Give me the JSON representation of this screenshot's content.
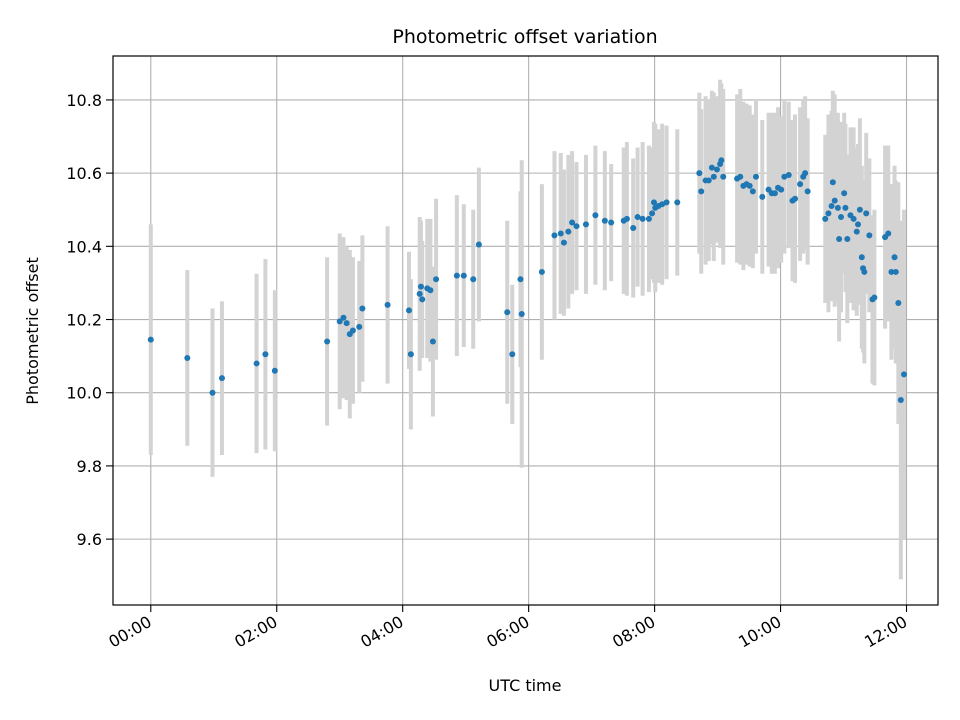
{
  "chart_data": {
    "type": "scatter",
    "title": "Photometric offset variation",
    "xlabel": "UTC time",
    "ylabel": "Photometric offset",
    "x_unit": "hours UTC",
    "xlim": [
      -0.6,
      12.5
    ],
    "ylim": [
      9.42,
      10.92
    ],
    "xticks": [
      0,
      2,
      4,
      6,
      8,
      10,
      12
    ],
    "xtick_labels": [
      "00:00",
      "02:00",
      "04:00",
      "06:00",
      "08:00",
      "10:00",
      "12:00"
    ],
    "yticks": [
      9.6,
      9.8,
      10.0,
      10.2,
      10.4,
      10.6,
      10.8
    ],
    "ytick_labels": [
      "9.6",
      "9.8",
      "10.0",
      "10.2",
      "10.4",
      "10.6",
      "10.8"
    ],
    "grid": true,
    "colors": {
      "points": "#1f77b4",
      "errorbars": "#d3d3d3",
      "grid": "#b0b0b0"
    },
    "points": [
      [
        0.0,
        10.145,
        0.315
      ],
      [
        0.58,
        10.095,
        0.24
      ],
      [
        0.98,
        10.0,
        0.23
      ],
      [
        1.13,
        10.04,
        0.21
      ],
      [
        1.68,
        10.08,
        0.245
      ],
      [
        1.82,
        10.105,
        0.26
      ],
      [
        1.97,
        10.06,
        0.22
      ],
      [
        2.8,
        10.14,
        0.23
      ],
      [
        3.0,
        10.195,
        0.24
      ],
      [
        3.06,
        10.205,
        0.22
      ],
      [
        3.11,
        10.19,
        0.21
      ],
      [
        3.16,
        10.16,
        0.23
      ],
      [
        3.21,
        10.17,
        0.2
      ],
      [
        3.31,
        10.18,
        0.18
      ],
      [
        3.36,
        10.23,
        0.2
      ],
      [
        3.76,
        10.24,
        0.215
      ],
      [
        4.1,
        10.225,
        0.16
      ],
      [
        4.13,
        10.105,
        0.205
      ],
      [
        4.27,
        10.27,
        0.21
      ],
      [
        4.29,
        10.29,
        0.18
      ],
      [
        4.31,
        10.255,
        0.16
      ],
      [
        4.39,
        10.285,
        0.19
      ],
      [
        4.44,
        10.28,
        0.195
      ],
      [
        4.48,
        10.14,
        0.205
      ],
      [
        4.53,
        10.31,
        0.22
      ],
      [
        4.86,
        10.32,
        0.22
      ],
      [
        4.97,
        10.32,
        0.195
      ],
      [
        5.12,
        10.31,
        0.19
      ],
      [
        5.21,
        10.405,
        0.21
      ],
      [
        5.66,
        10.22,
        0.25
      ],
      [
        5.74,
        10.105,
        0.19
      ],
      [
        5.87,
        10.31,
        0.24
      ],
      [
        5.89,
        10.215,
        0.42
      ],
      [
        6.21,
        10.33,
        0.24
      ],
      [
        6.41,
        10.43,
        0.23
      ],
      [
        6.51,
        10.435,
        0.22
      ],
      [
        6.56,
        10.41,
        0.2
      ],
      [
        6.63,
        10.44,
        0.21
      ],
      [
        6.69,
        10.465,
        0.195
      ],
      [
        6.76,
        10.455,
        0.175
      ],
      [
        6.91,
        10.46,
        0.19
      ],
      [
        7.06,
        10.485,
        0.19
      ],
      [
        7.21,
        10.47,
        0.19
      ],
      [
        7.31,
        10.465,
        0.16
      ],
      [
        7.51,
        10.47,
        0.2
      ],
      [
        7.56,
        10.475,
        0.21
      ],
      [
        7.66,
        10.45,
        0.19
      ],
      [
        7.73,
        10.48,
        0.19
      ],
      [
        7.81,
        10.475,
        0.21
      ],
      [
        7.91,
        10.475,
        0.2
      ],
      [
        7.96,
        10.49,
        0.18
      ],
      [
        7.99,
        10.52,
        0.22
      ],
      [
        8.01,
        10.505,
        0.23
      ],
      [
        8.06,
        10.51,
        0.21
      ],
      [
        8.12,
        10.515,
        0.22
      ],
      [
        8.19,
        10.52,
        0.21
      ],
      [
        8.36,
        10.52,
        0.2
      ],
      [
        8.71,
        10.6,
        0.22
      ],
      [
        8.74,
        10.55,
        0.225
      ],
      [
        8.81,
        10.58,
        0.23
      ],
      [
        8.86,
        10.58,
        0.22
      ],
      [
        8.91,
        10.615,
        0.21
      ],
      [
        8.94,
        10.59,
        0.23
      ],
      [
        8.99,
        10.61,
        0.2
      ],
      [
        9.04,
        10.625,
        0.23
      ],
      [
        9.06,
        10.635,
        0.21
      ],
      [
        9.09,
        10.59,
        0.24
      ],
      [
        9.31,
        10.585,
        0.23
      ],
      [
        9.36,
        10.59,
        0.24
      ],
      [
        9.41,
        10.565,
        0.23
      ],
      [
        9.46,
        10.57,
        0.22
      ],
      [
        9.51,
        10.565,
        0.22
      ],
      [
        9.56,
        10.55,
        0.21
      ],
      [
        9.61,
        10.59,
        0.21
      ],
      [
        9.71,
        10.535,
        0.21
      ],
      [
        9.81,
        10.555,
        0.21
      ],
      [
        9.86,
        10.545,
        0.22
      ],
      [
        9.91,
        10.545,
        0.22
      ],
      [
        9.96,
        10.56,
        0.22
      ],
      [
        10.01,
        10.555,
        0.2
      ],
      [
        10.06,
        10.59,
        0.21
      ],
      [
        10.13,
        10.595,
        0.2
      ],
      [
        10.19,
        10.525,
        0.22
      ],
      [
        10.23,
        10.53,
        0.23
      ],
      [
        10.31,
        10.57,
        0.21
      ],
      [
        10.36,
        10.59,
        0.21
      ],
      [
        10.39,
        10.6,
        0.21
      ],
      [
        10.43,
        10.55,
        0.2
      ],
      [
        10.71,
        10.475,
        0.23
      ],
      [
        10.76,
        10.49,
        0.27
      ],
      [
        10.81,
        10.51,
        0.26
      ],
      [
        10.83,
        10.575,
        0.25
      ],
      [
        10.86,
        10.525,
        0.29
      ],
      [
        10.91,
        10.505,
        0.26
      ],
      [
        10.93,
        10.42,
        0.28
      ],
      [
        10.96,
        10.48,
        0.26
      ],
      [
        11.01,
        10.545,
        0.22
      ],
      [
        11.03,
        10.505,
        0.23
      ],
      [
        11.06,
        10.42,
        0.23
      ],
      [
        11.11,
        10.485,
        0.24
      ],
      [
        11.16,
        10.475,
        0.25
      ],
      [
        11.21,
        10.44,
        0.23
      ],
      [
        11.23,
        10.46,
        0.22
      ],
      [
        11.26,
        10.5,
        0.25
      ],
      [
        11.29,
        10.37,
        0.25
      ],
      [
        11.31,
        10.34,
        0.23
      ],
      [
        11.33,
        10.33,
        0.25
      ],
      [
        11.36,
        10.49,
        0.22
      ],
      [
        11.41,
        10.43,
        0.21
      ],
      [
        11.46,
        10.255,
        0.23
      ],
      [
        11.49,
        10.26,
        0.24
      ],
      [
        11.66,
        10.425,
        0.25
      ],
      [
        11.71,
        10.435,
        0.24
      ],
      [
        11.76,
        10.33,
        0.24
      ],
      [
        11.81,
        10.37,
        0.25
      ],
      [
        11.83,
        10.33,
        0.25
      ],
      [
        11.87,
        10.245,
        0.33
      ],
      [
        11.91,
        9.98,
        0.49
      ],
      [
        11.96,
        10.05,
        0.45
      ]
    ]
  }
}
